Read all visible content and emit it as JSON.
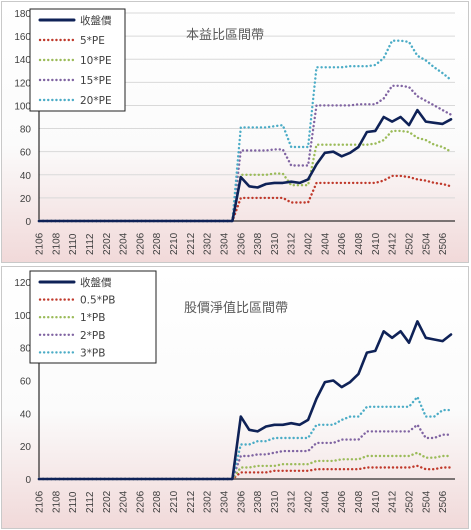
{
  "chart_data": [
    {
      "type": "line",
      "title": "本益比區間帶",
      "xlabel": "",
      "ylabel": "",
      "ylim": [
        0,
        180
      ],
      "yticks": [
        0,
        20,
        40,
        60,
        80,
        100,
        120,
        140,
        160,
        180
      ],
      "grid": "horizontal",
      "legend_position": "top-left",
      "x_tick_labels": [
        "2106",
        "2108",
        "2110",
        "2112",
        "2202",
        "2204",
        "2206",
        "2208",
        "2210",
        "2212",
        "2302",
        "2304",
        "2306",
        "2308",
        "2310",
        "2312",
        "2402",
        "2404",
        "2406",
        "2408",
        "2410",
        "2412",
        "2502",
        "2504",
        "2506"
      ],
      "x": [
        "2106",
        "2107",
        "2108",
        "2109",
        "2110",
        "2111",
        "2112",
        "2201",
        "2202",
        "2203",
        "2204",
        "2205",
        "2206",
        "2207",
        "2208",
        "2209",
        "2210",
        "2211",
        "2212",
        "2301",
        "2302",
        "2303",
        "2304",
        "2305",
        "2306",
        "2307",
        "2308",
        "2309",
        "2310",
        "2311",
        "2312",
        "2401",
        "2402",
        "2403",
        "2404",
        "2405",
        "2406",
        "2407",
        "2408",
        "2409",
        "2410",
        "2411",
        "2412",
        "2501",
        "2502",
        "2503",
        "2504",
        "2505",
        "2506",
        "2507"
      ],
      "series": [
        {
          "name": "收盤價",
          "color": "#0f2257",
          "style": "solid",
          "values": [
            0,
            0,
            0,
            0,
            0,
            0,
            0,
            0,
            0,
            0,
            0,
            0,
            0,
            0,
            0,
            0,
            0,
            0,
            0,
            0,
            0,
            0,
            0,
            0,
            38,
            30,
            29,
            32,
            33,
            33,
            34,
            33,
            36,
            49,
            59,
            60,
            56,
            59,
            64,
            77,
            78,
            90,
            86,
            90,
            83,
            96,
            86,
            85,
            84,
            88
          ]
        },
        {
          "name": "5*PE",
          "color": "#c0392b",
          "style": "dotted",
          "values": [
            0,
            0,
            0,
            0,
            0,
            0,
            0,
            0,
            0,
            0,
            0,
            0,
            0,
            0,
            0,
            0,
            0,
            0,
            0,
            0,
            0,
            0,
            0,
            0,
            20,
            20,
            20,
            20,
            20,
            20,
            16,
            16,
            16,
            33,
            33,
            33,
            33,
            33,
            33,
            33,
            33,
            35,
            39,
            39,
            38,
            36,
            35,
            33,
            32,
            30
          ]
        },
        {
          "name": "10*PE",
          "color": "#9bbb59",
          "style": "dotted",
          "values": [
            0,
            0,
            0,
            0,
            0,
            0,
            0,
            0,
            0,
            0,
            0,
            0,
            0,
            0,
            0,
            0,
            0,
            0,
            0,
            0,
            0,
            0,
            0,
            0,
            40,
            40,
            40,
            40,
            41,
            41,
            31,
            31,
            31,
            66,
            66,
            66,
            66,
            66,
            66,
            66,
            67,
            70,
            78,
            78,
            77,
            72,
            70,
            66,
            64,
            60
          ]
        },
        {
          "name": "15*PE",
          "color": "#8064a2",
          "style": "dotted",
          "values": [
            0,
            0,
            0,
            0,
            0,
            0,
            0,
            0,
            0,
            0,
            0,
            0,
            0,
            0,
            0,
            0,
            0,
            0,
            0,
            0,
            0,
            0,
            0,
            0,
            61,
            61,
            61,
            61,
            62,
            62,
            48,
            48,
            48,
            100,
            100,
            100,
            100,
            100,
            101,
            101,
            101,
            106,
            117,
            117,
            116,
            108,
            104,
            100,
            96,
            92
          ]
        },
        {
          "name": "20*PE",
          "color": "#4bacc6",
          "style": "dotted",
          "values": [
            0,
            0,
            0,
            0,
            0,
            0,
            0,
            0,
            0,
            0,
            0,
            0,
            0,
            0,
            0,
            0,
            0,
            0,
            0,
            0,
            0,
            0,
            0,
            0,
            81,
            81,
            81,
            81,
            82,
            83,
            64,
            64,
            64,
            133,
            133,
            133,
            133,
            134,
            134,
            134,
            135,
            141,
            156,
            156,
            155,
            143,
            139,
            133,
            128,
            122
          ]
        }
      ]
    },
    {
      "type": "line",
      "title": "股價淨值比區間帶",
      "xlabel": "",
      "ylabel": "",
      "ylim": [
        0,
        120
      ],
      "yticks": [
        0,
        20,
        40,
        60,
        80,
        100,
        120
      ],
      "grid": "none",
      "legend_position": "top-left",
      "x_tick_labels": [
        "2106",
        "2108",
        "2110",
        "2112",
        "2202",
        "2204",
        "2206",
        "2208",
        "2210",
        "2212",
        "2302",
        "2304",
        "2306",
        "2308",
        "2310",
        "2312",
        "2402",
        "2404",
        "2406",
        "2408",
        "2410",
        "2412",
        "2502",
        "2504",
        "2506"
      ],
      "x": [
        "2106",
        "2107",
        "2108",
        "2109",
        "2110",
        "2111",
        "2112",
        "2201",
        "2202",
        "2203",
        "2204",
        "2205",
        "2206",
        "2207",
        "2208",
        "2209",
        "2210",
        "2211",
        "2212",
        "2301",
        "2302",
        "2303",
        "2304",
        "2305",
        "2306",
        "2307",
        "2308",
        "2309",
        "2310",
        "2311",
        "2312",
        "2401",
        "2402",
        "2403",
        "2404",
        "2405",
        "2406",
        "2407",
        "2408",
        "2409",
        "2410",
        "2411",
        "2412",
        "2501",
        "2502",
        "2503",
        "2504",
        "2505",
        "2506",
        "2507"
      ],
      "series": [
        {
          "name": "收盤價",
          "color": "#0f2257",
          "style": "solid",
          "values": [
            0,
            0,
            0,
            0,
            0,
            0,
            0,
            0,
            0,
            0,
            0,
            0,
            0,
            0,
            0,
            0,
            0,
            0,
            0,
            0,
            0,
            0,
            0,
            0,
            38,
            30,
            29,
            32,
            33,
            33,
            34,
            33,
            36,
            49,
            59,
            60,
            56,
            59,
            64,
            77,
            78,
            90,
            86,
            90,
            83,
            96,
            86,
            85,
            84,
            88
          ]
        },
        {
          "name": "0.5*PB",
          "color": "#c0392b",
          "style": "dotted",
          "values": [
            0,
            0,
            0,
            0,
            0,
            0,
            0,
            0,
            0,
            0,
            0,
            0,
            0,
            0,
            0,
            0,
            0,
            0,
            0,
            0,
            0,
            0,
            0,
            0,
            4,
            4,
            4,
            4,
            5,
            5,
            5,
            5,
            5,
            6,
            6,
            6,
            6,
            6,
            6,
            7,
            7,
            7,
            7,
            7,
            7,
            8,
            6,
            6,
            7,
            7
          ]
        },
        {
          "name": "1*PB",
          "color": "#9bbb59",
          "style": "dotted",
          "values": [
            0,
            0,
            0,
            0,
            0,
            0,
            0,
            0,
            0,
            0,
            0,
            0,
            0,
            0,
            0,
            0,
            0,
            0,
            0,
            0,
            0,
            0,
            0,
            0,
            7,
            7,
            8,
            8,
            8,
            9,
            9,
            9,
            9,
            11,
            11,
            11,
            12,
            12,
            12,
            14,
            14,
            14,
            14,
            14,
            14,
            16,
            13,
            13,
            14,
            14
          ]
        },
        {
          "name": "2*PB",
          "color": "#8064a2",
          "style": "dotted",
          "values": [
            0,
            0,
            0,
            0,
            0,
            0,
            0,
            0,
            0,
            0,
            0,
            0,
            0,
            0,
            0,
            0,
            0,
            0,
            0,
            0,
            0,
            0,
            0,
            0,
            14,
            14,
            15,
            15,
            16,
            17,
            17,
            17,
            17,
            22,
            22,
            22,
            24,
            24,
            24,
            29,
            29,
            29,
            29,
            29,
            29,
            33,
            25,
            25,
            27,
            27
          ]
        },
        {
          "name": "3*PB",
          "color": "#4bacc6",
          "style": "dotted",
          "values": [
            0,
            0,
            0,
            0,
            0,
            0,
            0,
            0,
            0,
            0,
            0,
            0,
            0,
            0,
            0,
            0,
            0,
            0,
            0,
            0,
            0,
            0,
            0,
            0,
            21,
            21,
            23,
            23,
            25,
            25,
            25,
            25,
            25,
            33,
            33,
            33,
            36,
            38,
            38,
            44,
            44,
            44,
            44,
            44,
            44,
            50,
            38,
            38,
            42,
            42
          ]
        }
      ]
    }
  ]
}
